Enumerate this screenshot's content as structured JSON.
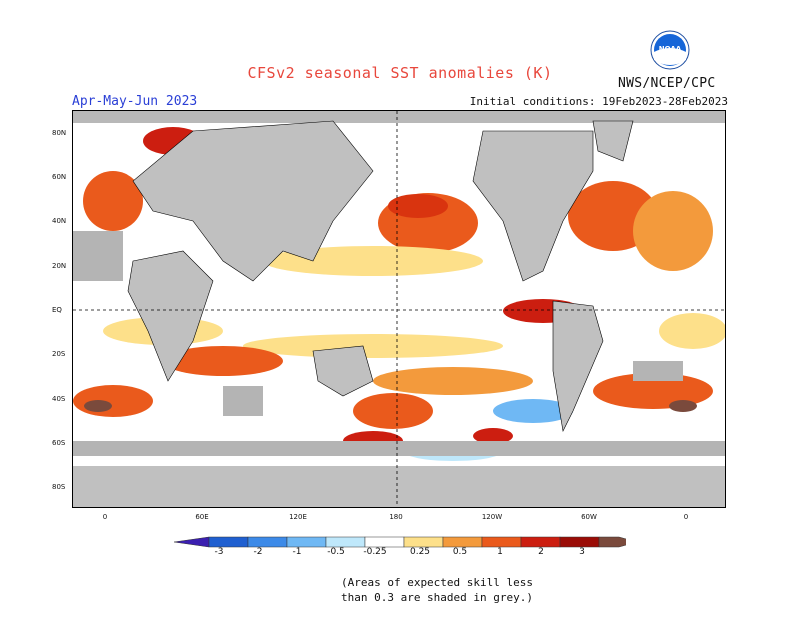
{
  "header": {
    "title": "CFSv2 seasonal SST anomalies (K)",
    "season": "Apr-May-Jun 2023",
    "initial_conditions": "Initial conditions: 19Feb2023-28Feb2023",
    "agency": "NWS/NCEP/CPC",
    "logo_text": "NOAA"
  },
  "map": {
    "latitude_labels": [
      "80N",
      "60N",
      "40N",
      "20N",
      "EQ",
      "20S",
      "40S",
      "60S",
      "80S"
    ],
    "longitude_labels": [
      "0",
      "60E",
      "120E",
      "180",
      "120W",
      "60W",
      "0"
    ],
    "colors": {
      "land": "#c0c0c0",
      "low_skill": "#b4b4b4",
      "ocean_neutral": "#ffffff"
    }
  },
  "colorbar": {
    "labels": [
      "-3",
      "-2",
      "-1",
      "-0.5",
      "-0.25",
      "0.25",
      "0.5",
      "1",
      "2",
      "3"
    ],
    "colors": [
      "#3b1fb0",
      "#1f5fd0",
      "#3c8ae8",
      "#6fb8f4",
      "#bfe8fb",
      "#ffffff",
      "#fde08a",
      "#f39a3c",
      "#ea5a1c",
      "#cc1e10",
      "#9a0c06",
      "#7a4a3c"
    ]
  },
  "note": {
    "line1": "(Areas of expected skill less",
    "line2": "than 0.3 are shaded in grey.)"
  }
}
